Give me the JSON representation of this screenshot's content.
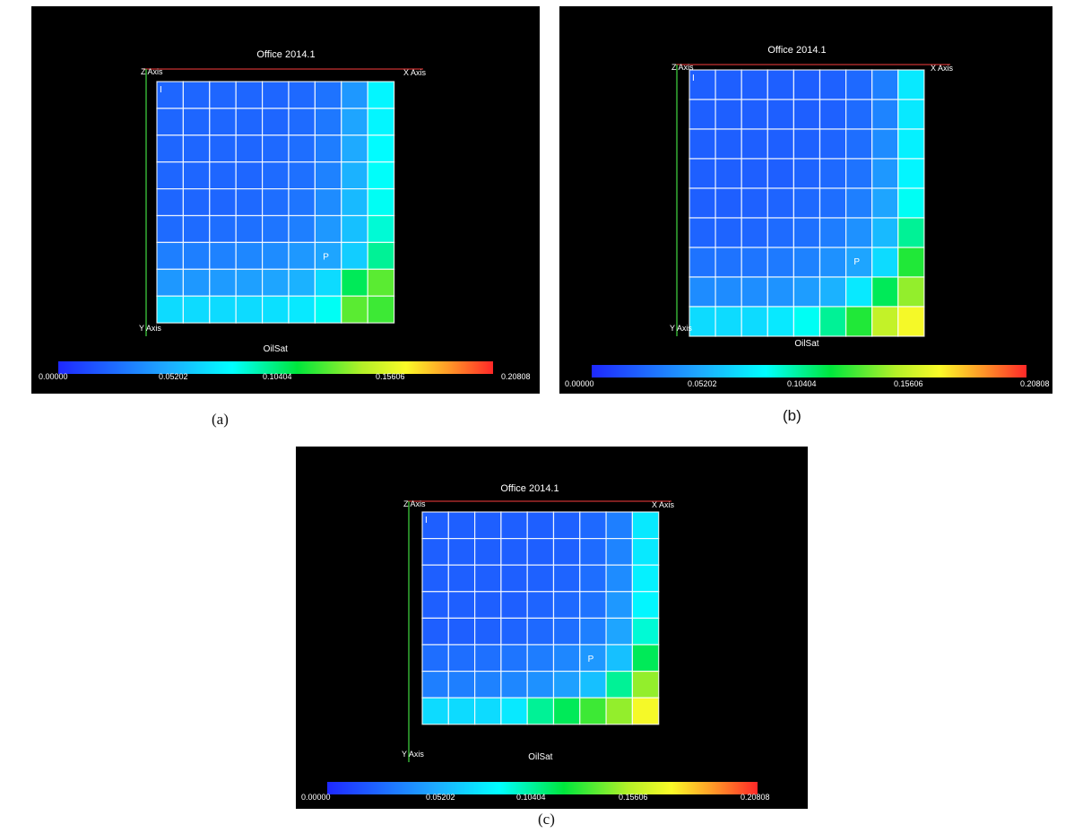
{
  "figure": {
    "captions": [
      "(a)",
      "(b)",
      "(c)"
    ]
  },
  "colors": {
    "background": "#000000",
    "grid_line": "#ffffff",
    "x_axis": "#c83232",
    "z_axis": "#3cc83c",
    "text": "#ffffff"
  },
  "chart_data": [
    {
      "type": "heatmap",
      "panel": "a",
      "title": "Office 2014.1",
      "xlabel": "X Axis",
      "zlabel": "Z Axis",
      "ylabel": "Y Axis",
      "variable": "OilSat",
      "well_labels": [
        "I",
        "P"
      ],
      "colorscale": {
        "min": 0.0,
        "max": 0.20808,
        "ticks": [
          "0.00000",
          "0.05202",
          "0.10404",
          "0.15606",
          "0.20808"
        ]
      },
      "grid": [
        [
          0.025,
          0.025,
          0.025,
          0.025,
          0.025,
          0.026,
          0.03,
          0.045,
          0.08
        ],
        [
          0.025,
          0.025,
          0.025,
          0.025,
          0.025,
          0.027,
          0.032,
          0.05,
          0.08
        ],
        [
          0.025,
          0.025,
          0.025,
          0.025,
          0.026,
          0.028,
          0.034,
          0.052,
          0.082
        ],
        [
          0.025,
          0.025,
          0.025,
          0.025,
          0.027,
          0.029,
          0.036,
          0.055,
          0.084
        ],
        [
          0.025,
          0.025,
          0.025,
          0.026,
          0.028,
          0.031,
          0.04,
          0.058,
          0.085
        ],
        [
          0.027,
          0.027,
          0.028,
          0.029,
          0.031,
          0.035,
          0.045,
          0.06,
          0.09
        ],
        [
          0.035,
          0.035,
          0.036,
          0.038,
          0.04,
          0.045,
          0.05,
          0.065,
          0.1
        ],
        [
          0.045,
          0.045,
          0.046,
          0.048,
          0.05,
          0.055,
          0.07,
          0.11,
          0.13
        ],
        [
          0.07,
          0.07,
          0.07,
          0.07,
          0.072,
          0.075,
          0.085,
          0.13,
          0.125
        ]
      ]
    },
    {
      "type": "heatmap",
      "panel": "b",
      "title": "Office 2014.1",
      "xlabel": "X Axis",
      "zlabel": "Z Axis",
      "ylabel": "Y Axis",
      "variable": "OilSat",
      "well_labels": [
        "I",
        "P"
      ],
      "colorscale": {
        "min": 0.0,
        "max": 0.20808,
        "ticks": [
          "0.00000",
          "0.05202",
          "0.10404",
          "0.15606",
          "0.20808"
        ]
      },
      "grid": [
        [
          0.022,
          0.022,
          0.022,
          0.022,
          0.022,
          0.023,
          0.026,
          0.035,
          0.075
        ],
        [
          0.022,
          0.022,
          0.022,
          0.022,
          0.022,
          0.023,
          0.027,
          0.037,
          0.075
        ],
        [
          0.022,
          0.022,
          0.022,
          0.022,
          0.023,
          0.024,
          0.028,
          0.04,
          0.078
        ],
        [
          0.022,
          0.022,
          0.022,
          0.022,
          0.024,
          0.026,
          0.03,
          0.045,
          0.08
        ],
        [
          0.022,
          0.022,
          0.023,
          0.024,
          0.026,
          0.028,
          0.035,
          0.05,
          0.085
        ],
        [
          0.024,
          0.024,
          0.025,
          0.027,
          0.029,
          0.034,
          0.042,
          0.058,
          0.1
        ],
        [
          0.03,
          0.03,
          0.031,
          0.033,
          0.036,
          0.042,
          0.05,
          0.07,
          0.12
        ],
        [
          0.04,
          0.04,
          0.041,
          0.043,
          0.047,
          0.055,
          0.075,
          0.11,
          0.14
        ],
        [
          0.07,
          0.07,
          0.07,
          0.075,
          0.085,
          0.1,
          0.12,
          0.15,
          0.165
        ]
      ]
    },
    {
      "type": "heatmap",
      "panel": "c",
      "title": "Office 2014.1",
      "xlabel": "X Axis",
      "zlabel": "Z Axis",
      "ylabel": "Y Axis",
      "variable": "OilSat",
      "well_labels": [
        "I",
        "P"
      ],
      "colorscale": {
        "min": 0.0,
        "max": 0.20808,
        "ticks": [
          "0.00000",
          "0.05202",
          "0.10404",
          "0.15606",
          "0.20808"
        ]
      },
      "grid": [
        [
          0.022,
          0.022,
          0.022,
          0.022,
          0.022,
          0.023,
          0.026,
          0.035,
          0.075
        ],
        [
          0.022,
          0.022,
          0.022,
          0.022,
          0.022,
          0.023,
          0.027,
          0.037,
          0.075
        ],
        [
          0.022,
          0.022,
          0.022,
          0.022,
          0.023,
          0.024,
          0.028,
          0.04,
          0.078
        ],
        [
          0.022,
          0.022,
          0.022,
          0.022,
          0.024,
          0.026,
          0.03,
          0.045,
          0.08
        ],
        [
          0.022,
          0.022,
          0.023,
          0.024,
          0.026,
          0.028,
          0.035,
          0.05,
          0.09
        ],
        [
          0.028,
          0.028,
          0.029,
          0.031,
          0.034,
          0.038,
          0.045,
          0.06,
          0.11
        ],
        [
          0.035,
          0.035,
          0.036,
          0.038,
          0.042,
          0.048,
          0.06,
          0.1,
          0.14
        ],
        [
          0.07,
          0.07,
          0.07,
          0.075,
          0.1,
          0.11,
          0.125,
          0.14,
          0.165
        ]
      ]
    }
  ]
}
